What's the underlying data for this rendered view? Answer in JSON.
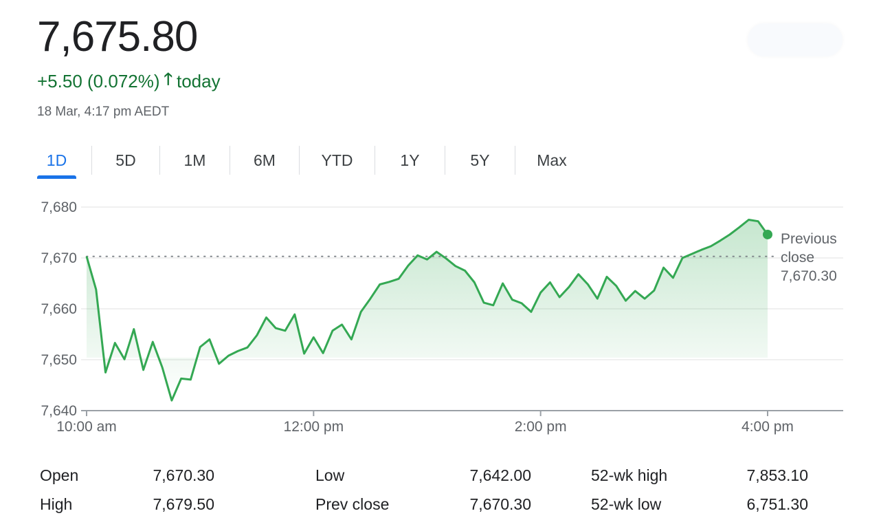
{
  "header": {
    "price": "7,675.80",
    "change": "+5.50 (0.072%)",
    "change_suffix": "today",
    "arrow_icon": "arrow-up-icon",
    "timestamp": "18 Mar, 4:17 pm AEDT",
    "change_color": "#137333"
  },
  "tabs": [
    {
      "label": "1D",
      "active": true
    },
    {
      "label": "5D",
      "active": false
    },
    {
      "label": "1M",
      "active": false
    },
    {
      "label": "6M",
      "active": false
    },
    {
      "label": "YTD",
      "active": false
    },
    {
      "label": "1Y",
      "active": false
    },
    {
      "label": "5Y",
      "active": false
    },
    {
      "label": "Max",
      "active": false
    }
  ],
  "chart_data": {
    "type": "area",
    "x_unit": "time of day",
    "ylim": [
      7640,
      7680
    ],
    "xlim": [
      "10:00 am",
      "4:20 pm"
    ],
    "y_ticks": [
      "7,680",
      "7,670",
      "7,660",
      "7,650",
      "7,640"
    ],
    "x_ticks": [
      "10:00 am",
      "12:00 pm",
      "2:00 pm",
      "4:00 pm"
    ],
    "grid": true,
    "line_color": "#34a853",
    "reference_line": {
      "label": "Previous close",
      "value_label": "7,670.30",
      "value": 7670.3
    },
    "points": [
      [
        "10:00",
        7670.3
      ],
      [
        "10:05",
        7663.8
      ],
      [
        "10:10",
        7647.5
      ],
      [
        "10:15",
        7653.3
      ],
      [
        "10:20",
        7650.1
      ],
      [
        "10:25",
        7656.0
      ],
      [
        "10:30",
        7648.0
      ],
      [
        "10:35",
        7653.5
      ],
      [
        "10:40",
        7648.5
      ],
      [
        "10:45",
        7642.0
      ],
      [
        "10:50",
        7646.3
      ],
      [
        "10:55",
        7646.1
      ],
      [
        "11:00",
        7652.5
      ],
      [
        "11:05",
        7654.0
      ],
      [
        "11:10",
        7649.2
      ],
      [
        "11:15",
        7650.8
      ],
      [
        "11:20",
        7651.7
      ],
      [
        "11:25",
        7652.4
      ],
      [
        "11:30",
        7654.8
      ],
      [
        "11:35",
        7658.3
      ],
      [
        "11:40",
        7656.2
      ],
      [
        "11:45",
        7655.7
      ],
      [
        "11:50",
        7658.9
      ],
      [
        "11:55",
        7651.2
      ],
      [
        "12:00",
        7654.4
      ],
      [
        "12:05",
        7651.3
      ],
      [
        "12:10",
        7655.7
      ],
      [
        "12:15",
        7656.9
      ],
      [
        "12:20",
        7654.0
      ],
      [
        "12:25",
        7659.4
      ],
      [
        "12:30",
        7662.0
      ],
      [
        "12:35",
        7664.8
      ],
      [
        "12:40",
        7665.3
      ],
      [
        "12:45",
        7665.9
      ],
      [
        "12:50",
        7668.5
      ],
      [
        "12:55",
        7670.5
      ],
      [
        "13:00",
        7669.7
      ],
      [
        "13:05",
        7671.2
      ],
      [
        "13:10",
        7669.9
      ],
      [
        "13:15",
        7668.4
      ],
      [
        "13:20",
        7667.5
      ],
      [
        "13:25",
        7665.2
      ],
      [
        "13:30",
        7661.2
      ],
      [
        "13:35",
        7660.7
      ],
      [
        "13:40",
        7665.0
      ],
      [
        "13:45",
        7661.8
      ],
      [
        "13:50",
        7661.1
      ],
      [
        "13:55",
        7659.4
      ],
      [
        "14:00",
        7663.2
      ],
      [
        "14:05",
        7665.2
      ],
      [
        "14:10",
        7662.3
      ],
      [
        "14:15",
        7664.3
      ],
      [
        "14:20",
        7666.8
      ],
      [
        "14:25",
        7664.8
      ],
      [
        "14:30",
        7662.0
      ],
      [
        "14:35",
        7666.3
      ],
      [
        "14:40",
        7664.5
      ],
      [
        "14:45",
        7661.6
      ],
      [
        "14:50",
        7663.5
      ],
      [
        "14:55",
        7662.0
      ],
      [
        "15:00",
        7663.6
      ],
      [
        "15:05",
        7668.1
      ],
      [
        "15:10",
        7666.1
      ],
      [
        "15:15",
        7670.0
      ],
      [
        "15:20",
        7670.8
      ],
      [
        "15:25",
        7671.6
      ],
      [
        "15:30",
        7672.3
      ],
      [
        "15:35",
        7673.4
      ],
      [
        "15:40",
        7674.6
      ],
      [
        "15:45",
        7676.0
      ],
      [
        "15:50",
        7677.5
      ],
      [
        "15:55",
        7677.2
      ],
      [
        "16:00",
        7674.6
      ]
    ]
  },
  "stats": [
    {
      "label": "Open",
      "value": "7,670.30"
    },
    {
      "label": "High",
      "value": "7,679.50"
    },
    {
      "label": "Low",
      "value": "7,642.00"
    },
    {
      "label": "Prev close",
      "value": "7,670.30"
    },
    {
      "label": "52-wk high",
      "value": "7,853.10"
    },
    {
      "label": "52-wk low",
      "value": "6,751.30"
    }
  ]
}
